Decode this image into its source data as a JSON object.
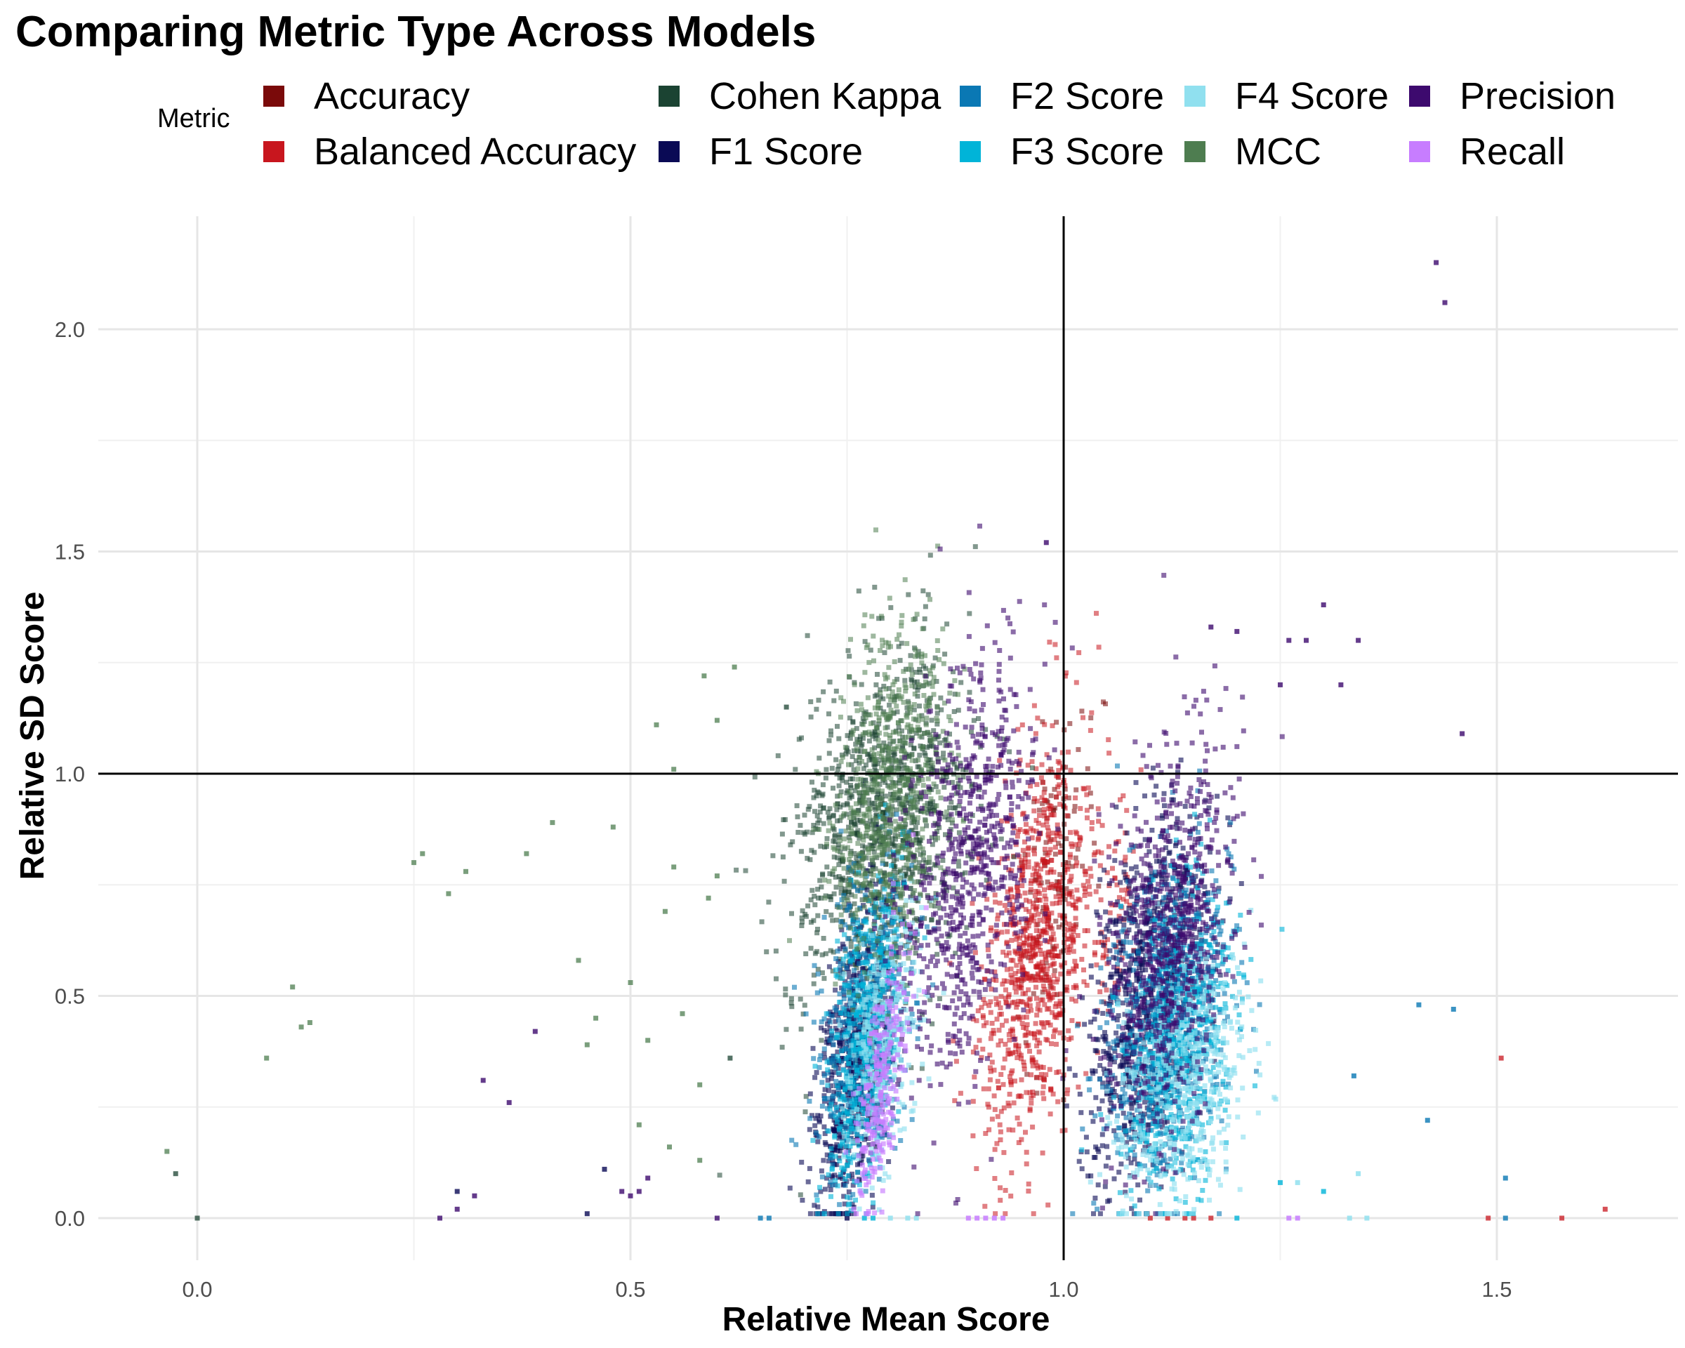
{
  "chart_data": {
    "type": "scatter",
    "title": "Comparing Metric Type Across Models",
    "xlabel": "Relative Mean Score",
    "ylabel": "Relative SD Score",
    "xlim": [
      -0.115,
      1.71
    ],
    "ylim": [
      -0.1,
      2.25
    ],
    "x_ticks": [
      "0.0",
      "0.5",
      "1.0",
      "1.5"
    ],
    "x_tick_values": [
      0.0,
      0.5,
      1.0,
      1.5
    ],
    "y_ticks": [
      "0.0",
      "0.5",
      "1.0",
      "1.5",
      "2.0"
    ],
    "y_tick_values": [
      0.0,
      0.5,
      1.0,
      1.5,
      2.0
    ],
    "reference_lines": {
      "x": 1.0,
      "y": 1.0
    },
    "grid": true,
    "legend_title": "Metric",
    "legend_position": "top",
    "series": [
      {
        "name": "Accuracy",
        "color": "#7A0A0A",
        "opacity": 0.55,
        "clusters": [
          {
            "cx": 0.99,
            "cy": 0.75,
            "sx": 0.02,
            "sy": 0.2,
            "n": 120
          }
        ]
      },
      {
        "name": "Balanced Accuracy",
        "color": "#C8161E",
        "opacity": 0.55,
        "clusters": [
          {
            "cx": 0.97,
            "cy": 0.62,
            "sx": 0.03,
            "sy": 0.23,
            "n": 900
          },
          {
            "cx": 1.06,
            "cy": 0.7,
            "sx": 0.012,
            "sy": 0.12,
            "n": 60
          }
        ],
        "points": [
          [
            1.17,
            0.0
          ],
          [
            1.12,
            0.0
          ],
          [
            1.14,
            0.0
          ],
          [
            1.49,
            0.0
          ],
          [
            1.575,
            0.0
          ],
          [
            1.625,
            0.02
          ],
          [
            1.505,
            0.36
          ],
          [
            1.1,
            0.0
          ],
          [
            1.15,
            0.0
          ]
        ]
      },
      {
        "name": "Cohen Kappa",
        "color": "#1B4332",
        "opacity": 0.55,
        "clusters": [
          {
            "cx": 0.79,
            "cy": 0.88,
            "sx": 0.05,
            "sy": 0.2,
            "n": 1100
          }
        ],
        "points": [
          [
            0.0,
            0.0
          ],
          [
            -0.025,
            0.1
          ],
          [
            0.68,
            1.15
          ],
          [
            0.615,
            0.36
          ]
        ]
      },
      {
        "name": "F1 Score",
        "color": "#0A0A55",
        "opacity": 0.6,
        "clusters": [
          {
            "cx": 0.76,
            "cy": 0.35,
            "sx": 0.02,
            "sy": 0.17,
            "n": 700
          },
          {
            "cx": 1.1,
            "cy": 0.5,
            "sx": 0.03,
            "sy": 0.2,
            "n": 900
          }
        ],
        "points": [
          [
            0.45,
            0.01
          ],
          [
            0.47,
            0.11
          ],
          [
            0.3,
            0.06
          ],
          [
            0.75,
            0.0
          ]
        ]
      },
      {
        "name": "F2 Score",
        "color": "#0A78B4",
        "opacity": 0.6,
        "clusters": [
          {
            "cx": 0.77,
            "cy": 0.45,
            "sx": 0.025,
            "sy": 0.18,
            "n": 500
          },
          {
            "cx": 1.12,
            "cy": 0.45,
            "sx": 0.035,
            "sy": 0.18,
            "n": 700
          }
        ],
        "points": [
          [
            0.65,
            0.0
          ],
          [
            0.66,
            0.0
          ],
          [
            1.41,
            0.48
          ],
          [
            1.42,
            0.22
          ],
          [
            1.45,
            0.47
          ],
          [
            1.51,
            0.09
          ],
          [
            1.335,
            0.32
          ],
          [
            1.51,
            0.0
          ]
        ]
      },
      {
        "name": "F3 Score",
        "color": "#00B4D8",
        "opacity": 0.6,
        "clusters": [
          {
            "cx": 0.77,
            "cy": 0.4,
            "sx": 0.018,
            "sy": 0.18,
            "n": 500
          },
          {
            "cx": 1.13,
            "cy": 0.38,
            "sx": 0.03,
            "sy": 0.18,
            "n": 600
          }
        ],
        "points": [
          [
            0.77,
            0.0
          ],
          [
            0.78,
            0.0
          ],
          [
            1.25,
            0.08
          ],
          [
            1.2,
            0.0
          ],
          [
            1.3,
            0.06
          ]
        ]
      },
      {
        "name": "F4 Score",
        "color": "#90E0EF",
        "opacity": 0.65,
        "clusters": [
          {
            "cx": 0.79,
            "cy": 0.4,
            "sx": 0.02,
            "sy": 0.15,
            "n": 300
          },
          {
            "cx": 1.14,
            "cy": 0.3,
            "sx": 0.035,
            "sy": 0.15,
            "n": 500
          }
        ],
        "points": [
          [
            0.8,
            0.0
          ],
          [
            0.82,
            0.0
          ],
          [
            0.83,
            0.0
          ],
          [
            1.33,
            0.0
          ],
          [
            1.34,
            0.1
          ],
          [
            1.35,
            0.0
          ],
          [
            1.27,
            0.08
          ]
        ]
      },
      {
        "name": "MCC",
        "color": "#4E7D50",
        "opacity": 0.55,
        "clusters": [
          {
            "cx": 0.8,
            "cy": 0.95,
            "sx": 0.03,
            "sy": 0.18,
            "n": 700
          }
        ],
        "points": [
          [
            -0.035,
            0.15
          ],
          [
            0.08,
            0.36
          ],
          [
            0.12,
            0.43
          ],
          [
            0.13,
            0.44
          ],
          [
            0.11,
            0.52
          ],
          [
            0.25,
            0.8
          ],
          [
            0.26,
            0.82
          ],
          [
            0.29,
            0.73
          ],
          [
            0.31,
            0.78
          ],
          [
            0.38,
            0.82
          ],
          [
            0.41,
            0.89
          ],
          [
            0.44,
            0.58
          ],
          [
            0.45,
            0.39
          ],
          [
            0.46,
            0.45
          ],
          [
            0.48,
            0.88
          ],
          [
            0.5,
            0.53
          ],
          [
            0.51,
            0.21
          ],
          [
            0.52,
            0.4
          ],
          [
            0.54,
            0.69
          ],
          [
            0.55,
            0.79
          ],
          [
            0.53,
            1.11
          ],
          [
            0.55,
            1.01
          ],
          [
            0.56,
            0.46
          ],
          [
            0.58,
            0.3
          ],
          [
            0.585,
            1.22
          ],
          [
            0.62,
            1.24
          ],
          [
            0.6,
            1.12
          ],
          [
            0.59,
            0.72
          ],
          [
            0.6,
            0.77
          ],
          [
            0.58,
            0.13
          ],
          [
            0.545,
            0.16
          ]
        ]
      },
      {
        "name": "Precision",
        "color": "#3D0A6E",
        "opacity": 0.6,
        "clusters": [
          {
            "cx": 0.89,
            "cy": 0.78,
            "sx": 0.035,
            "sy": 0.25,
            "n": 700
          },
          {
            "cx": 1.12,
            "cy": 0.62,
            "sx": 0.035,
            "sy": 0.22,
            "n": 700
          }
        ],
        "points": [
          [
            1.43,
            2.15
          ],
          [
            1.44,
            2.06
          ],
          [
            1.3,
            1.38
          ],
          [
            1.28,
            1.3
          ],
          [
            1.26,
            1.3
          ],
          [
            1.32,
            1.2
          ],
          [
            1.34,
            1.3
          ],
          [
            1.25,
            1.2
          ],
          [
            1.2,
            1.32
          ],
          [
            1.17,
            1.33
          ],
          [
            1.46,
            1.09
          ],
          [
            0.98,
            1.52
          ],
          [
            0.28,
            0.0
          ],
          [
            0.3,
            0.02
          ],
          [
            0.33,
            0.31
          ],
          [
            0.36,
            0.26
          ],
          [
            0.39,
            0.42
          ],
          [
            0.32,
            0.05
          ],
          [
            0.49,
            0.06
          ],
          [
            0.51,
            0.06
          ],
          [
            0.6,
            0.0
          ],
          [
            0.52,
            0.09
          ],
          [
            0.5,
            0.05
          ]
        ]
      },
      {
        "name": "Recall",
        "color": "#C77DFF",
        "opacity": 0.65,
        "clusters": [
          {
            "cx": 0.79,
            "cy": 0.3,
            "sx": 0.012,
            "sy": 0.15,
            "n": 250
          }
        ],
        "points": [
          [
            0.89,
            0.0
          ],
          [
            0.9,
            0.0
          ],
          [
            0.91,
            0.0
          ],
          [
            0.92,
            0.0
          ],
          [
            0.93,
            0.0
          ],
          [
            1.26,
            0.0
          ],
          [
            1.27,
            0.0
          ]
        ]
      }
    ]
  }
}
